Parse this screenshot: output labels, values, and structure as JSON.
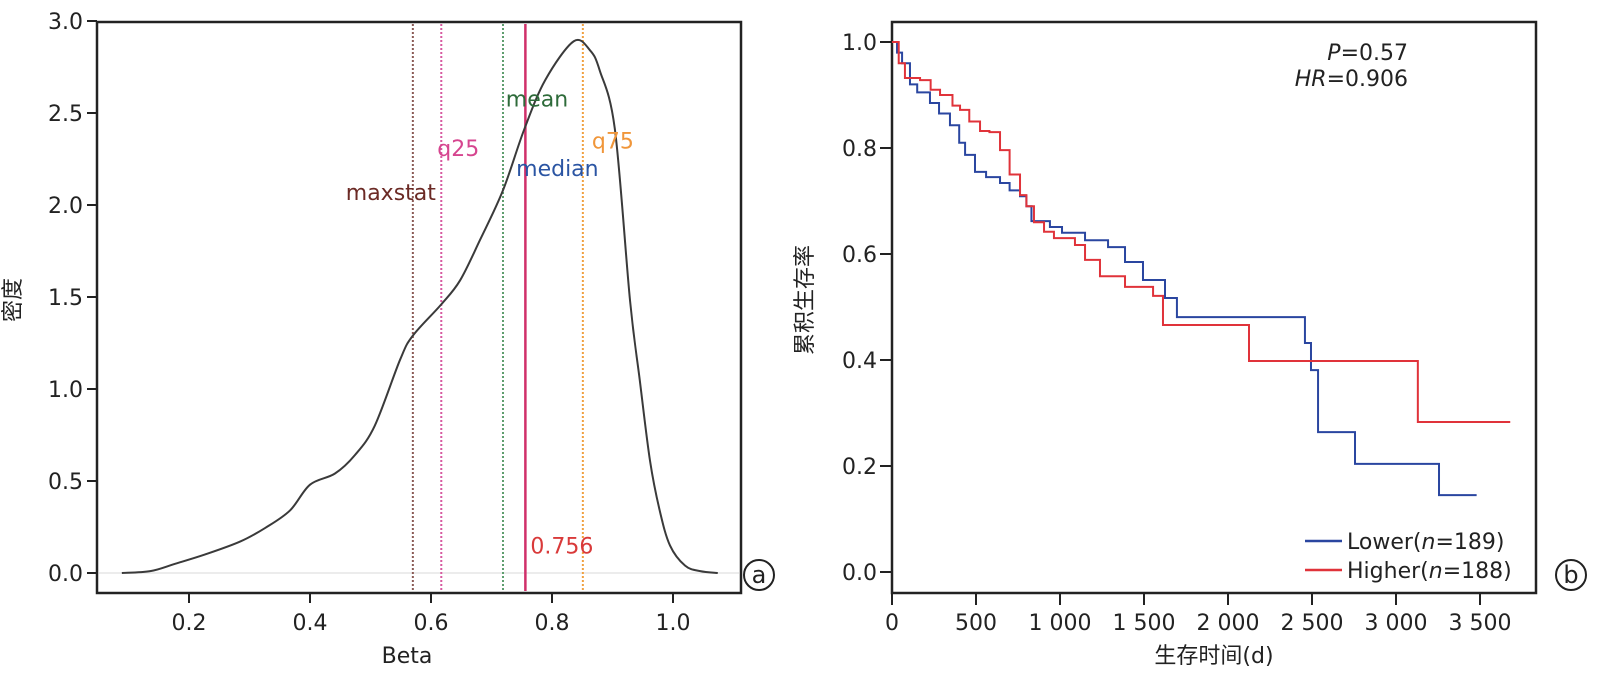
{
  "chart_data": [
    {
      "type": "line",
      "panel_label": "a",
      "title": "",
      "xlabel": "Beta",
      "ylabel": "密度",
      "xlim": [
        0.05,
        1.11
      ],
      "ylim": [
        -0.1,
        3.0
      ],
      "xticks": [
        0.2,
        0.4,
        0.6,
        0.8,
        1.0
      ],
      "xtick_labels": [
        "0.2",
        "0.4",
        "0.6",
        "0.8",
        "1.0"
      ],
      "yticks": [
        0.0,
        0.5,
        1.0,
        1.5,
        2.0,
        2.5,
        3.0
      ],
      "ytick_labels": [
        "0.0",
        "0.5",
        "1.0",
        "1.5",
        "2.0",
        "2.5",
        "3.0"
      ],
      "grid": false,
      "series": [
        {
          "name": "density",
          "color": "#3a3a3a",
          "x": [
            0.089,
            0.136,
            0.177,
            0.226,
            0.284,
            0.326,
            0.367,
            0.4,
            0.441,
            0.474,
            0.507,
            0.549,
            0.57,
            0.617,
            0.648,
            0.681,
            0.719,
            0.754,
            0.789,
            0.836,
            0.863,
            0.879,
            0.904,
            0.929,
            0.945,
            0.962,
            0.978,
            0.995,
            1.02,
            1.045,
            1.074
          ],
          "y": [
            0.0,
            0.01,
            0.05,
            0.1,
            0.17,
            0.245,
            0.34,
            0.48,
            0.54,
            0.64,
            0.8,
            1.16,
            1.29,
            1.46,
            1.59,
            1.81,
            2.08,
            2.41,
            2.68,
            2.89,
            2.84,
            2.73,
            2.41,
            1.48,
            1.05,
            0.61,
            0.34,
            0.15,
            0.04,
            0.01,
            0.0
          ]
        }
      ],
      "vlines": [
        {
          "name": "maxstat",
          "x": 0.57,
          "color": "#8a5a55",
          "label_color": "#6b2a25",
          "style": "dotted",
          "label_y": 2.07
        },
        {
          "name": "q25",
          "x": 0.617,
          "color": "#d65aa0",
          "label_color": "#d6458f",
          "style": "dotted",
          "label_y": 2.31
        },
        {
          "name": "mean",
          "x": 0.719,
          "color": "#5e9e6e",
          "label_color": "#2e6b3a",
          "style": "dotted",
          "label_y": 2.58
        },
        {
          "name": "median",
          "x": 0.756,
          "color": "#d0306a",
          "label_color": "#2b55a3",
          "style": "solid",
          "label_y": 2.2
        },
        {
          "name": "q75",
          "x": 0.851,
          "color": "#f0a040",
          "label_color": "#f0963a",
          "style": "dotted",
          "label_y": 2.35
        }
      ],
      "annotations": [
        {
          "text": "0.756",
          "x": 0.756,
          "y": 0.15,
          "color": "#d93a3a"
        }
      ]
    },
    {
      "type": "line",
      "subtype": "kaplan-meier",
      "panel_label": "b",
      "title": "",
      "xlabel": "生存时间(d)",
      "ylabel": "累积生存率",
      "xlim": [
        0,
        3900
      ],
      "ylim": [
        -0.04,
        1.04
      ],
      "xticks": [
        0,
        500,
        1000,
        1500,
        2000,
        2500,
        3000,
        3500
      ],
      "xtick_labels": [
        "0",
        "500",
        "1 000",
        "1 500",
        "2 000",
        "2 500",
        "3 000",
        "3 500"
      ],
      "yticks": [
        0.0,
        0.2,
        0.4,
        0.6,
        0.8,
        1.0
      ],
      "ytick_labels": [
        "0.0",
        "0.2",
        "0.4",
        "0.6",
        "0.8",
        "1.0"
      ],
      "grid": false,
      "stats": {
        "p_label": "P",
        "p_value": "=0.57",
        "hr_label": "HR",
        "hr_value": "=0.906"
      },
      "legend_position": "bottom-right",
      "series": [
        {
          "name": "Lower",
          "n_label": "n",
          "n_value": "=189)",
          "legend_prefix": "Lower(",
          "color": "#2a46a0",
          "t": [
            0,
            30,
            60,
            107,
            150,
            226,
            280,
            345,
            400,
            435,
            494,
            560,
            643,
            700,
            762,
            800,
            830,
            940,
            1012,
            1149,
            1286,
            1387,
            1494,
            1625,
            1696,
            2458,
            2494,
            2536,
            2756,
            3256,
            3480
          ],
          "s": [
            1.0,
            0.98,
            0.96,
            0.92,
            0.905,
            0.885,
            0.865,
            0.843,
            0.81,
            0.787,
            0.755,
            0.745,
            0.734,
            0.72,
            0.709,
            0.69,
            0.662,
            0.651,
            0.64,
            0.626,
            0.613,
            0.585,
            0.551,
            0.517,
            0.481,
            0.432,
            0.381,
            0.264,
            0.204,
            0.145,
            0.145
          ]
        },
        {
          "name": "Higher",
          "n_label": "n",
          "n_value": "=188)",
          "legend_prefix": "Higher(",
          "color": "#e0333a",
          "t": [
            0,
            40,
            77,
            167,
            230,
            286,
            360,
            405,
            460,
            524,
            580,
            643,
            700,
            762,
            800,
            845,
            905,
            964,
            1089,
            1149,
            1238,
            1387,
            1554,
            1613,
            2125,
            3130,
            3680
          ],
          "s": [
            1.0,
            0.96,
            0.932,
            0.928,
            0.91,
            0.9,
            0.88,
            0.872,
            0.85,
            0.832,
            0.83,
            0.796,
            0.75,
            0.711,
            0.69,
            0.66,
            0.642,
            0.63,
            0.617,
            0.589,
            0.558,
            0.538,
            0.521,
            0.466,
            0.398,
            0.283,
            0.283
          ]
        }
      ]
    }
  ]
}
